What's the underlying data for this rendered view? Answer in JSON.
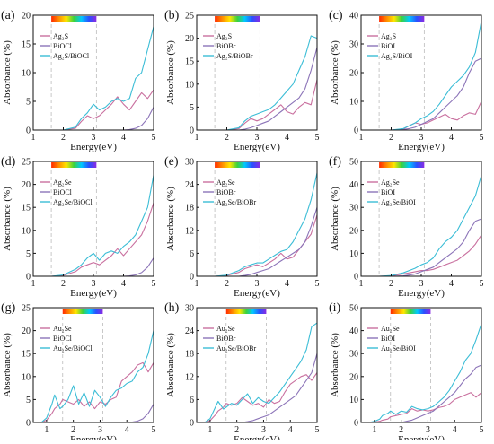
{
  "figure": {
    "background": "#ffffff"
  },
  "palette": {
    "cyan": "#3bbdd6",
    "pink": "#c9709f",
    "purple": "#8c74b8",
    "guide": "#bbbbbb",
    "axis": "#111111"
  },
  "spectrum_colors": [
    "#ff2a00",
    "#ff8c00",
    "#ffe600",
    "#3cd23c",
    "#00c8ff",
    "#2a50ff",
    "#8a2be2"
  ],
  "visible_region_eV": [
    1.6,
    3.1
  ],
  "chart_data": [
    {
      "panel": "(a)",
      "type": "line",
      "xlabel": "Energy(eV)",
      "ylabel": "Absorbance (%)",
      "xlim": [
        1,
        5
      ],
      "ylim": [
        0,
        20
      ],
      "xticks": [
        1,
        2,
        3,
        4,
        5
      ],
      "yticks": [
        0,
        5,
        10,
        15,
        20
      ],
      "x": [
        1.6,
        2.0,
        2.4,
        2.6,
        2.8,
        3.0,
        3.2,
        3.4,
        3.6,
        3.8,
        4.0,
        4.2,
        4.4,
        4.6,
        4.8,
        5.0
      ],
      "series": [
        {
          "legend": "Ag₂S",
          "color": "#c9709f",
          "values": [
            0,
            0,
            0.3,
            1.5,
            2.5,
            2,
            2.5,
            3.5,
            4.5,
            5.8,
            4.5,
            3.5,
            5,
            6.5,
            5.5,
            7
          ]
        },
        {
          "legend": "BiOCl",
          "color": "#8c74b8",
          "values": [
            0,
            0,
            0,
            0,
            0,
            0,
            0,
            0,
            0,
            0,
            0,
            0.1,
            0.3,
            0.8,
            2,
            4
          ]
        },
        {
          "legend": "Ag₂S/BiOCl",
          "color": "#3bbdd6",
          "values": [
            0,
            0,
            0.5,
            2,
            3,
            4.5,
            3.5,
            4,
            5,
            5.5,
            5,
            5.5,
            9,
            10,
            14,
            18
          ]
        }
      ]
    },
    {
      "panel": "(b)",
      "type": "line",
      "xlabel": "Energy(eV)",
      "ylabel": "Absorbance (%)",
      "xlim": [
        1,
        5
      ],
      "ylim": [
        0,
        25
      ],
      "xticks": [
        1,
        2,
        3,
        4,
        5
      ],
      "yticks": [
        0,
        5,
        10,
        15,
        20,
        25
      ],
      "x": [
        1.6,
        2.0,
        2.4,
        2.6,
        2.8,
        3.0,
        3.2,
        3.4,
        3.6,
        3.8,
        4.0,
        4.2,
        4.4,
        4.6,
        4.8,
        5.0
      ],
      "series": [
        {
          "legend": "Ag₂S",
          "color": "#c9709f",
          "values": [
            0,
            0,
            0.3,
            1.5,
            2.5,
            2,
            2.5,
            3.5,
            4.5,
            5.5,
            4,
            3.5,
            5,
            6,
            5.5,
            11
          ]
        },
        {
          "legend": "BiOBr",
          "color": "#8c74b8",
          "values": [
            0,
            0,
            0,
            0.2,
            0.5,
            1,
            1.5,
            2,
            3,
            4,
            5,
            6,
            7,
            9,
            13,
            18
          ]
        },
        {
          "legend": "Ag₂S/BiOBr",
          "color": "#3bbdd6",
          "values": [
            0,
            0,
            0.5,
            2,
            3,
            3.5,
            4,
            4.5,
            5.5,
            7,
            8.5,
            10,
            13,
            16,
            20.5,
            20
          ]
        }
      ]
    },
    {
      "panel": "(c)",
      "type": "line",
      "xlabel": "Energy(eV)",
      "ylabel": "Absorbance (%)",
      "xlim": [
        1,
        5
      ],
      "ylim": [
        0,
        40
      ],
      "xticks": [
        1,
        2,
        3,
        4,
        5
      ],
      "yticks": [
        0,
        10,
        20,
        30,
        40
      ],
      "x": [
        1.6,
        2.0,
        2.4,
        2.6,
        2.8,
        3.0,
        3.2,
        3.4,
        3.6,
        3.8,
        4.0,
        4.2,
        4.4,
        4.6,
        4.8,
        5.0
      ],
      "series": [
        {
          "legend": "Ag₂S",
          "color": "#c9709f",
          "values": [
            0,
            0,
            0.3,
            1.5,
            2.5,
            2,
            2.5,
            3.5,
            4.5,
            5.5,
            4,
            3.5,
            5,
            6,
            5.5,
            10
          ]
        },
        {
          "legend": "BiOI",
          "color": "#8c74b8",
          "values": [
            0,
            0,
            0.2,
            0.5,
            1,
            2,
            3,
            4,
            6,
            8,
            10,
            12,
            15,
            20,
            24,
            25
          ]
        },
        {
          "legend": "Ag₂S/BiOI",
          "color": "#3bbdd6",
          "values": [
            0,
            0,
            0.5,
            1.5,
            2.5,
            4,
            5,
            6.5,
            9,
            12,
            15,
            17,
            19,
            22,
            27,
            38
          ]
        }
      ]
    },
    {
      "panel": "(d)",
      "type": "line",
      "xlabel": "Energy(eV)",
      "ylabel": "Absorbance (%)",
      "xlim": [
        1,
        5
      ],
      "ylim": [
        0,
        25
      ],
      "xticks": [
        1,
        2,
        3,
        4,
        5
      ],
      "yticks": [
        0,
        5,
        10,
        15,
        20,
        25
      ],
      "x": [
        1.6,
        2.0,
        2.4,
        2.6,
        2.8,
        3.0,
        3.2,
        3.4,
        3.6,
        3.8,
        4.0,
        4.2,
        4.4,
        4.6,
        4.8,
        5.0
      ],
      "series": [
        {
          "legend": "Ag₂Se",
          "color": "#c9709f",
          "values": [
            0,
            0.2,
            1,
            2,
            2.5,
            3,
            2.5,
            3.5,
            4.5,
            6,
            4.5,
            6,
            7.5,
            9,
            12,
            16
          ]
        },
        {
          "legend": "BiOCl",
          "color": "#8c74b8",
          "values": [
            0,
            0,
            0,
            0,
            0,
            0,
            0,
            0,
            0,
            0,
            0,
            0.1,
            0.3,
            0.8,
            2,
            4
          ]
        },
        {
          "legend": "Ag₂Se/BiOCl",
          "color": "#3bbdd6",
          "values": [
            0,
            0.3,
            1.5,
            2.5,
            4,
            5,
            3.5,
            5,
            5.5,
            5,
            6.5,
            7.5,
            9,
            12,
            15,
            22
          ]
        }
      ]
    },
    {
      "panel": "(e)",
      "type": "line",
      "xlabel": "Energy(eV)",
      "ylabel": "Absorbance (%)",
      "xlim": [
        1,
        5
      ],
      "ylim": [
        0,
        30
      ],
      "xticks": [
        1,
        2,
        3,
        4,
        5
      ],
      "yticks": [
        0,
        6,
        12,
        18,
        24,
        30
      ],
      "x": [
        1.6,
        2.0,
        2.4,
        2.6,
        2.8,
        3.0,
        3.2,
        3.4,
        3.6,
        3.8,
        4.0,
        4.2,
        4.4,
        4.6,
        4.8,
        5.0
      ],
      "series": [
        {
          "legend": "Ag₂Se",
          "color": "#c9709f",
          "values": [
            0,
            0.2,
            1,
            2,
            2.5,
            3,
            2.5,
            3.5,
            4.5,
            6,
            4.5,
            5,
            7,
            9,
            11,
            16
          ]
        },
        {
          "legend": "BiOBr",
          "color": "#8c74b8",
          "values": [
            0,
            0,
            0,
            0.2,
            0.5,
            1,
            1.5,
            2,
            3,
            4,
            5,
            6,
            7,
            9,
            13,
            18
          ]
        },
        {
          "legend": "Ag₂Se/BiOBr",
          "color": "#3bbdd6",
          "values": [
            0,
            0.3,
            1.5,
            2.5,
            3,
            3.5,
            3.5,
            4.5,
            5.5,
            6.5,
            7,
            9,
            12,
            15,
            20,
            27
          ]
        }
      ]
    },
    {
      "panel": "(f)",
      "type": "line",
      "xlabel": "Energy(eV)",
      "ylabel": "Absorbance (%)",
      "xlim": [
        1,
        5
      ],
      "ylim": [
        0,
        50
      ],
      "xticks": [
        1,
        2,
        3,
        4,
        5
      ],
      "yticks": [
        0,
        10,
        20,
        30,
        40,
        50
      ],
      "x": [
        1.6,
        2.0,
        2.4,
        2.6,
        2.8,
        3.0,
        3.2,
        3.4,
        3.6,
        3.8,
        4.0,
        4.2,
        4.4,
        4.6,
        4.8,
        5.0
      ],
      "series": [
        {
          "legend": "Ag₂Se",
          "color": "#c9709f",
          "values": [
            0,
            0.2,
            1,
            1.5,
            2,
            2.5,
            2.5,
            3,
            4,
            5,
            6,
            7,
            9,
            11,
            14,
            18
          ]
        },
        {
          "legend": "BiOI",
          "color": "#8c74b8",
          "values": [
            0,
            0,
            0.2,
            0.5,
            1,
            2,
            3,
            4,
            6,
            8,
            10,
            12,
            15,
            20,
            24,
            25
          ]
        },
        {
          "legend": "Ag₂Se/BiOI",
          "color": "#3bbdd6",
          "values": [
            0,
            0.3,
            1.5,
            2.5,
            3.5,
            5,
            6,
            8,
            12,
            15,
            17,
            20,
            25,
            30,
            35,
            44
          ]
        }
      ]
    },
    {
      "panel": "(g)",
      "type": "line",
      "xlabel": "Energy(eV)",
      "ylabel": "Absorbance (%)",
      "xlim": [
        0.5,
        5
      ],
      "ylim": [
        0,
        25
      ],
      "xticks": [
        1,
        2,
        3,
        4,
        5
      ],
      "yticks": [
        0,
        5,
        10,
        15,
        20,
        25
      ],
      "x": [
        0.8,
        1.0,
        1.2,
        1.3,
        1.5,
        1.6,
        1.8,
        2.0,
        2.2,
        2.4,
        2.6,
        2.8,
        3.0,
        3.2,
        3.4,
        3.6,
        3.8,
        4.0,
        4.2,
        4.4,
        4.6,
        4.8,
        5.0
      ],
      "series": [
        {
          "legend": "Au₂Se",
          "color": "#c9709f",
          "values": [
            0,
            0.5,
            2,
            3,
            4,
            5,
            4.5,
            4,
            5,
            3.5,
            4.5,
            3,
            4.5,
            4,
            5,
            5.5,
            9,
            10,
            11,
            12.5,
            13,
            11,
            13
          ]
        },
        {
          "legend": "BiOCl",
          "color": "#8c74b8",
          "values": [
            0,
            0,
            0,
            0,
            0,
            0,
            0,
            0,
            0,
            0,
            0,
            0,
            0,
            0,
            0,
            0,
            0,
            0,
            0.1,
            0.3,
            0.8,
            2,
            4
          ]
        },
        {
          "legend": "Au₂Se/BiOCl",
          "color": "#3bbdd6",
          "values": [
            0,
            1,
            4,
            6,
            3,
            3.5,
            5,
            8,
            4,
            6.5,
            3.5,
            7,
            5.5,
            3.5,
            5.5,
            7,
            7.5,
            8.5,
            9,
            11,
            12,
            15,
            20
          ]
        }
      ]
    },
    {
      "panel": "(h)",
      "type": "line",
      "xlabel": "Energy(eV)",
      "ylabel": "Absorbance (%)",
      "xlim": [
        0.5,
        5
      ],
      "ylim": [
        0,
        30
      ],
      "xticks": [
        1,
        2,
        3,
        4,
        5
      ],
      "yticks": [
        0,
        6,
        12,
        18,
        24,
        30
      ],
      "x": [
        0.8,
        1.0,
        1.2,
        1.3,
        1.5,
        1.6,
        1.8,
        2.0,
        2.2,
        2.4,
        2.6,
        2.8,
        3.0,
        3.2,
        3.4,
        3.6,
        3.8,
        4.0,
        4.2,
        4.4,
        4.6,
        4.8,
        5.0
      ],
      "series": [
        {
          "legend": "Au₂Se",
          "color": "#c9709f",
          "values": [
            0,
            0.5,
            2,
            3,
            4,
            5,
            4.5,
            5,
            6.5,
            5.5,
            4.5,
            5,
            4,
            6,
            5,
            5.5,
            8,
            10,
            11,
            12,
            12.5,
            11,
            13
          ]
        },
        {
          "legend": "BiOBr",
          "color": "#8c74b8",
          "values": [
            0,
            0,
            0,
            0,
            0,
            0,
            0,
            0,
            0,
            0.2,
            0.5,
            1,
            1.5,
            2,
            3,
            4,
            5,
            6,
            7,
            9,
            11,
            13,
            18
          ]
        },
        {
          "legend": "Au₂Se/BiOBr",
          "color": "#3bbdd6",
          "values": [
            0,
            1,
            4,
            5.5,
            3.5,
            4,
            5,
            4.5,
            6,
            7.5,
            5,
            6.5,
            5.5,
            5,
            6.5,
            8,
            10,
            12,
            14,
            16,
            19,
            25,
            26
          ]
        }
      ]
    },
    {
      "panel": "(i)",
      "type": "line",
      "xlabel": "Energy(eV)",
      "ylabel": "Absorbance (%)",
      "xlim": [
        0.5,
        5
      ],
      "ylim": [
        0,
        50
      ],
      "xticks": [
        1,
        2,
        3,
        4,
        5
      ],
      "yticks": [
        0,
        10,
        20,
        30,
        40,
        50
      ],
      "x": [
        0.8,
        1.0,
        1.2,
        1.3,
        1.5,
        1.6,
        1.8,
        2.0,
        2.2,
        2.4,
        2.6,
        2.8,
        3.0,
        3.2,
        3.4,
        3.6,
        3.8,
        4.0,
        4.2,
        4.4,
        4.6,
        4.8,
        5.0
      ],
      "series": [
        {
          "legend": "Au₂Se",
          "color": "#c9709f",
          "values": [
            0,
            0.2,
            0.5,
            1,
            1.5,
            2.5,
            3,
            3.5,
            4,
            6,
            5,
            5.5,
            5,
            5.5,
            6.5,
            7,
            8,
            10,
            11,
            12,
            13,
            11,
            13
          ]
        },
        {
          "legend": "BiOI",
          "color": "#8c74b8",
          "values": [
            0,
            0,
            0,
            0,
            0,
            0,
            0,
            0,
            0.5,
            1,
            2,
            3,
            4,
            5,
            7,
            9,
            11,
            13,
            16,
            19,
            21,
            24,
            25
          ]
        },
        {
          "legend": "Au₂Se/BiOI",
          "color": "#3bbdd6",
          "values": [
            0,
            0.5,
            1.5,
            3,
            4,
            5,
            3.5,
            5,
            4.5,
            7,
            6,
            5.5,
            6,
            7,
            9,
            11,
            14,
            18,
            22,
            27,
            30,
            36,
            43
          ]
        }
      ]
    }
  ]
}
